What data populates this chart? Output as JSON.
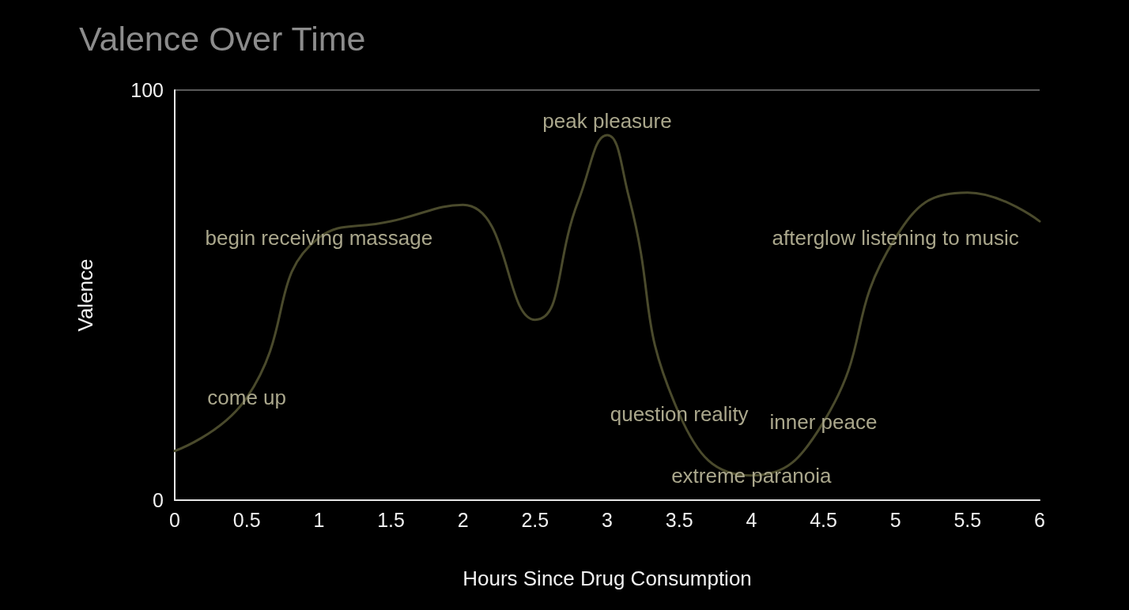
{
  "chart_data": {
    "type": "line",
    "title": "Valence Over Time",
    "xlabel": "Hours Since Drug Consumption",
    "ylabel": "Valence",
    "x": [
      0,
      0.5,
      1,
      1.5,
      2,
      2.5,
      2.8,
      3,
      3.15,
      3.5,
      4,
      4.5,
      5,
      5.5,
      6
    ],
    "series": [
      {
        "color": "#4a4a2c",
        "values": [
          12,
          25,
          64,
          68,
          72,
          44,
          73,
          89,
          74,
          21,
          6,
          19,
          64,
          75,
          68
        ]
      }
    ],
    "xlim": [
      0,
      6
    ],
    "xticks": [
      0,
      0.5,
      1,
      1.5,
      2,
      2.5,
      3,
      3.5,
      4,
      4.5,
      5,
      5.5,
      6
    ],
    "ylim": [
      0,
      100
    ],
    "yticks": [
      0,
      100
    ],
    "marker": "none",
    "line_style": "solid",
    "annotations": [
      {
        "text": "come up",
        "x": 0.5,
        "y": 25
      },
      {
        "text": "begin receiving massage",
        "x": 1,
        "y": 64
      },
      {
        "text": "peak pleasure",
        "x": 3,
        "y": 89
      },
      {
        "text": "question reality",
        "x": 3.5,
        "y": 21
      },
      {
        "text": "extreme paranoia",
        "x": 4,
        "y": 6
      },
      {
        "text": "inner peace",
        "x": 4.5,
        "y": 19
      },
      {
        "text": "afterglow listening to music",
        "x": 5,
        "y": 64
      }
    ]
  }
}
